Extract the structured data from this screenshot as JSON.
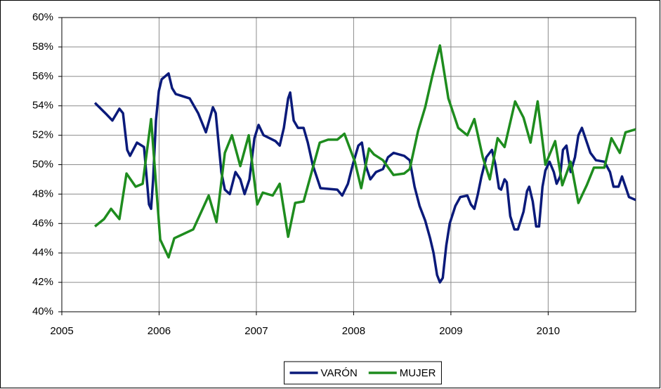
{
  "chart_data": {
    "type": "line",
    "xlim": [
      2005,
      2010.9
    ],
    "xticks": [
      2005,
      2006,
      2007,
      2008,
      2009,
      2010
    ],
    "ylim": [
      40,
      60
    ],
    "yticks": [
      {
        "value": 40,
        "label": "40%"
      },
      {
        "value": 42,
        "label": "42%"
      },
      {
        "value": 44,
        "label": "44%"
      },
      {
        "value": 46,
        "label": "46%"
      },
      {
        "value": 48,
        "label": "48%"
      },
      {
        "value": 50,
        "label": "50%"
      },
      {
        "value": 52,
        "label": "52%"
      },
      {
        "value": 54,
        "label": "54%"
      },
      {
        "value": 56,
        "label": "56%"
      },
      {
        "value": 58,
        "label": "58%"
      },
      {
        "value": 60,
        "label": "60%"
      }
    ],
    "grid": true,
    "legend": "bottom",
    "series": [
      {
        "name": "VARÓN",
        "color": "#0a1a7a",
        "x": [
          2005.34,
          2005.448,
          2005.52,
          2005.592,
          2005.629,
          2005.672,
          2005.701,
          2005.773,
          2005.845,
          2005.867,
          2005.896,
          2005.918,
          2005.939,
          2005.968,
          2005.997,
          2006.026,
          2006.098,
          2006.134,
          2006.171,
          2006.315,
          2006.402,
          2006.481,
          2006.553,
          2006.582,
          2006.64,
          2006.676,
          2006.727,
          2006.785,
          2006.835,
          2006.879,
          2006.929,
          2006.98,
          2007.023,
          2007.074,
          2007.197,
          2007.24,
          2007.283,
          2007.327,
          2007.348,
          2007.384,
          2007.428,
          2007.486,
          2007.529,
          2007.579,
          2007.659,
          2007.832,
          2007.883,
          2007.941,
          2007.991,
          2008.049,
          2008.085,
          2008.121,
          2008.172,
          2008.23,
          2008.302,
          2008.353,
          2008.41,
          2008.519,
          2008.577,
          2008.627,
          2008.678,
          2008.736,
          2008.786,
          2008.822,
          2008.858,
          2008.887,
          2008.916,
          2008.952,
          2008.988,
          2009.046,
          2009.097,
          2009.169,
          2009.205,
          2009.241,
          2009.277,
          2009.314,
          2009.364,
          2009.422,
          2009.458,
          2009.494,
          2009.516,
          2009.552,
          2009.574,
          2009.61,
          2009.653,
          2009.689,
          2009.747,
          2009.783,
          2009.805,
          2009.841,
          2009.877,
          2009.906,
          2009.942,
          2009.971,
          2010.014,
          2010.058,
          2010.087,
          2010.123,
          2010.152,
          2010.188,
          2010.231,
          2010.275,
          2010.311,
          2010.347,
          2010.383,
          2010.434,
          2010.491,
          2010.578,
          2010.636,
          2010.672,
          2010.723,
          2010.759,
          2010.795,
          2010.831,
          2010.9
        ],
        "values": [
          54.2,
          53.5,
          53.0,
          53.8,
          53.5,
          51.0,
          50.6,
          51.5,
          51.2,
          49.5,
          47.3,
          47.0,
          49.0,
          53.0,
          55.0,
          55.8,
          56.2,
          55.2,
          54.8,
          54.5,
          53.5,
          52.2,
          53.9,
          53.5,
          49.5,
          48.3,
          48.0,
          49.5,
          49.0,
          48.0,
          49.0,
          51.8,
          52.7,
          52.0,
          51.6,
          51.3,
          52.5,
          54.5,
          54.9,
          53.0,
          52.5,
          52.5,
          51.5,
          50.0,
          48.4,
          48.3,
          47.9,
          48.7,
          50.0,
          51.3,
          51.5,
          50.0,
          49.0,
          49.5,
          49.7,
          50.5,
          50.8,
          50.6,
          50.3,
          48.5,
          47.2,
          46.2,
          45.0,
          44.0,
          42.5,
          42.0,
          42.3,
          44.5,
          46.0,
          47.2,
          47.8,
          47.9,
          47.3,
          47.0,
          48.0,
          49.2,
          50.5,
          51.0,
          50.0,
          48.4,
          48.3,
          49.0,
          48.8,
          46.5,
          45.6,
          45.6,
          46.8,
          48.2,
          48.5,
          47.5,
          45.8,
          45.8,
          48.5,
          49.6,
          50.2,
          49.5,
          48.7,
          49.2,
          51.0,
          51.3,
          49.5,
          50.5,
          52.0,
          52.5,
          51.8,
          50.8,
          50.3,
          50.2,
          49.5,
          48.5,
          48.5,
          49.2,
          48.5,
          47.8,
          47.6
        ]
      },
      {
        "name": "MUJER",
        "color": "#1e8c1e",
        "x": [
          2005.34,
          2005.434,
          2005.506,
          2005.592,
          2005.665,
          2005.759,
          2005.831,
          2005.918,
          2006.012,
          2006.098,
          2006.156,
          2006.351,
          2006.51,
          2006.59,
          2006.676,
          2006.749,
          2006.835,
          2006.922,
          2007.009,
          2007.066,
          2007.168,
          2007.24,
          2007.327,
          2007.399,
          2007.486,
          2007.652,
          2007.738,
          2007.832,
          2007.905,
          2008.013,
          2008.078,
          2008.158,
          2008.208,
          2008.302,
          2008.41,
          2008.519,
          2008.577,
          2008.663,
          2008.736,
          2008.808,
          2008.887,
          2008.974,
          2009.075,
          2009.169,
          2009.241,
          2009.328,
          2009.4,
          2009.48,
          2009.552,
          2009.66,
          2009.747,
          2009.819,
          2009.892,
          2009.971,
          2010.072,
          2010.145,
          2010.231,
          2010.311,
          2010.397,
          2010.47,
          2010.578,
          2010.65,
          2010.737,
          2010.795,
          2010.9
        ],
        "values": [
          45.8,
          46.3,
          47.0,
          46.3,
          49.4,
          48.5,
          48.7,
          53.1,
          44.9,
          43.7,
          45.0,
          45.6,
          47.9,
          46.1,
          50.8,
          52.0,
          49.9,
          52.0,
          47.3,
          48.1,
          47.9,
          48.7,
          45.1,
          47.4,
          47.5,
          51.5,
          51.7,
          51.7,
          52.1,
          50.2,
          48.4,
          51.1,
          50.7,
          50.3,
          49.3,
          49.4,
          49.7,
          52.3,
          53.9,
          56.0,
          58.1,
          54.5,
          52.5,
          52.0,
          53.1,
          50.5,
          49.0,
          51.8,
          51.2,
          54.3,
          53.2,
          51.5,
          54.3,
          50.0,
          51.6,
          48.6,
          50.2,
          47.4,
          48.6,
          49.8,
          49.8,
          51.8,
          50.8,
          52.2,
          52.4
        ]
      }
    ]
  }
}
